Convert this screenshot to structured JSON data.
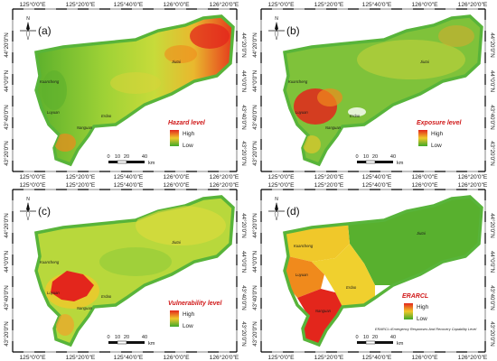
{
  "axes": {
    "x_ticks": [
      "125°0'0\"E",
      "125°20'0\"E",
      "125°40'0\"E",
      "126°0'0\"E",
      "126°20'0\"E"
    ],
    "y_ticks": [
      "44°20'0\"N",
      "44°0'0\"N",
      "43°40'0\"N",
      "43°20'0\"N"
    ]
  },
  "north_arrow": "N",
  "scale_bar": {
    "values": [
      "0",
      "10",
      "20",
      "40"
    ],
    "unit": "km"
  },
  "panels": [
    {
      "id": "a",
      "label": "(a)",
      "legend_title": "Hazard level",
      "legend_high": "High",
      "legend_low": "Low",
      "places": [
        "Kuancheng",
        "Luyuan",
        "Jiutai",
        "Erdao",
        "Nanguan"
      ]
    },
    {
      "id": "b",
      "label": "(b)",
      "legend_title": "Exposure level",
      "legend_high": "High",
      "legend_low": "Low",
      "places": [
        "Kuancheng",
        "Luyuan",
        "Jiutai",
        "Erdao",
        "Nanguan"
      ]
    },
    {
      "id": "c",
      "label": "(c)",
      "legend_title": "Vulnerability level",
      "legend_high": "High",
      "legend_low": "Low",
      "places": [
        "Kuancheng",
        "Luyuan",
        "Jiutai",
        "Erdao",
        "Nanguan"
      ]
    },
    {
      "id": "d",
      "label": "(d)",
      "legend_title": "ERARCL",
      "legend_high": "High",
      "legend_low": "Low",
      "places": [
        "Kuancheng",
        "Luyuan",
        "Jiutai",
        "Erdao",
        "Nanguan"
      ],
      "note": "ERARCL=Emergency Responses And Recovery Capability Level"
    }
  ],
  "colors": {
    "green": "#4caf2a",
    "light_green": "#a6d23a",
    "yellow": "#e8e22e",
    "orange": "#f08a1c",
    "red": "#e3261c",
    "outline": "#58b43a"
  }
}
